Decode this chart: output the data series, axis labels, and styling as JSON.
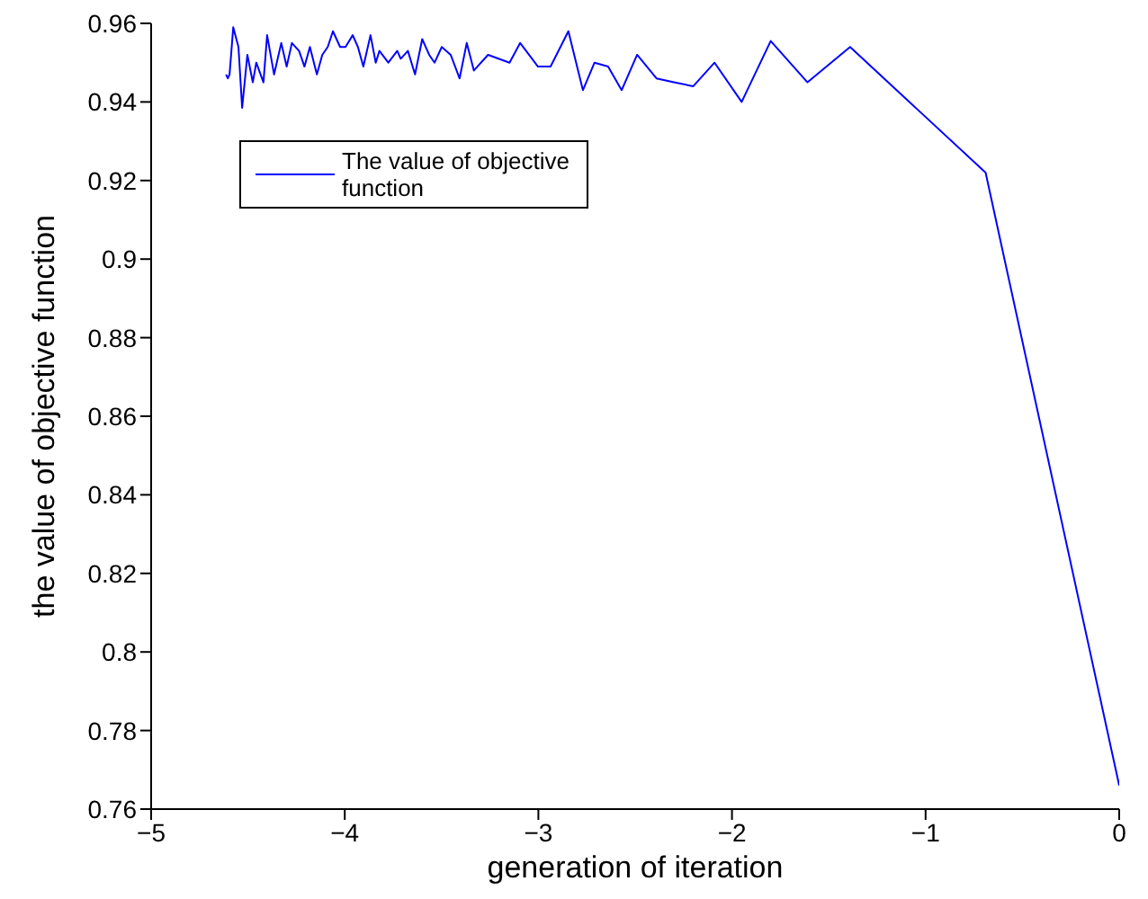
{
  "chart_data": {
    "type": "line",
    "xlabel": "generation of iteration",
    "ylabel": "the value of objective function",
    "series": [
      {
        "name": "The value of objective function",
        "color": "#0000ff",
        "x": [
          -4.613,
          -4.604,
          -4.595,
          -4.576,
          -4.549,
          -4.53,
          -4.503,
          -4.475,
          -4.457,
          -4.42,
          -4.401,
          -4.365,
          -4.328,
          -4.3,
          -4.273,
          -4.236,
          -4.208,
          -4.18,
          -4.144,
          -4.116,
          -4.088,
          -4.061,
          -4.024,
          -3.996,
          -3.959,
          -3.932,
          -3.904,
          -3.867,
          -3.84,
          -3.821,
          -3.775,
          -3.729,
          -3.711,
          -3.674,
          -3.637,
          -3.6,
          -3.564,
          -3.536,
          -3.499,
          -3.453,
          -3.407,
          -3.37,
          -3.333,
          -3.26,
          -3.149,
          -3.094,
          -3.002,
          -2.937,
          -2.845,
          -2.77,
          -2.71,
          -2.64,
          -2.57,
          -2.49,
          -2.39,
          -2.3,
          -2.2,
          -2.09,
          -1.95,
          -1.8,
          -1.61,
          -1.39,
          -0.69,
          0
        ],
        "values": [
          0.947,
          0.946,
          0.947,
          0.959,
          0.954,
          0.9385,
          0.952,
          0.945,
          0.95,
          0.945,
          0.957,
          0.947,
          0.955,
          0.949,
          0.955,
          0.953,
          0.949,
          0.954,
          0.947,
          0.952,
          0.954,
          0.958,
          0.954,
          0.954,
          0.957,
          0.954,
          0.949,
          0.957,
          0.95,
          0.953,
          0.95,
          0.953,
          0.951,
          0.953,
          0.947,
          0.956,
          0.952,
          0.95,
          0.954,
          0.952,
          0.946,
          0.955,
          0.948,
          0.952,
          0.95,
          0.955,
          0.949,
          0.949,
          0.958,
          0.943,
          0.95,
          0.949,
          0.943,
          0.952,
          0.946,
          0.945,
          0.944,
          0.95,
          0.94,
          0.9555,
          0.945,
          0.954,
          0.922,
          0.766
        ]
      }
    ],
    "xlim": [
      -5,
      0
    ],
    "xticks": [
      -5,
      -4,
      -3,
      -2,
      -1,
      0
    ],
    "ylim": [
      0.76,
      0.96
    ],
    "yticks": [
      0.76,
      0.78,
      0.8,
      0.82,
      0.84,
      0.86,
      0.88,
      0.9,
      0.92,
      0.94,
      0.96
    ],
    "grid": false,
    "legend": "top left",
    "marker": "none",
    "line_style": "solid"
  }
}
